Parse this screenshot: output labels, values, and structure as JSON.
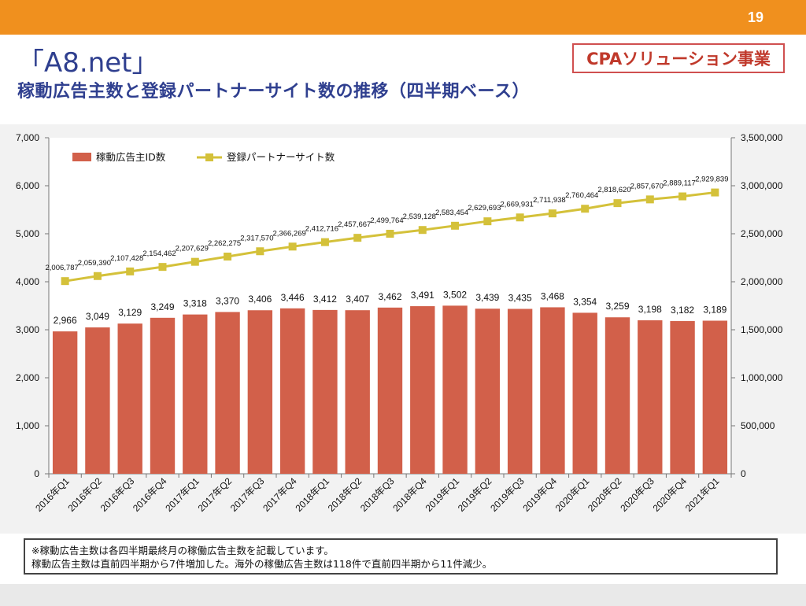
{
  "header": {
    "page_number": "19",
    "brand": "「A8.net」",
    "subtitle": "稼動広告主数と登録パートナーサイト数の推移（四半期ベース）",
    "tag": "CPAソリューション事業"
  },
  "colors": {
    "topbar": "#f0901e",
    "bar": "#d2604a",
    "line": "#d4c13a",
    "title": "#2f3f8f",
    "tag": "#c0392b"
  },
  "chart_data": {
    "type": "bar",
    "categories": [
      "2016年Q1",
      "2016年Q2",
      "2016年Q3",
      "2016年Q4",
      "2017年Q1",
      "2017年Q2",
      "2017年Q3",
      "2017年Q4",
      "2018年Q1",
      "2018年Q2",
      "2018年Q3",
      "2018年Q4",
      "2019年Q1",
      "2019年Q2",
      "2019年Q3",
      "2019年Q4",
      "2020年Q1",
      "2020年Q2",
      "2020年Q3",
      "2020年Q4",
      "2021年Q1"
    ],
    "series": [
      {
        "name": "稼動広告主ID数",
        "type": "bar",
        "axis": "left",
        "values": [
          2966,
          3049,
          3129,
          3249,
          3318,
          3370,
          3406,
          3446,
          3412,
          3407,
          3462,
          3491,
          3502,
          3439,
          3435,
          3468,
          3354,
          3259,
          3198,
          3182,
          3189
        ]
      },
      {
        "name": "登録パートナーサイト数",
        "type": "line",
        "axis": "right",
        "values": [
          2006787,
          2059390,
          2107428,
          2154462,
          2207629,
          2262275,
          2317570,
          2366269,
          2412716,
          2457667,
          2499764,
          2539128,
          2583454,
          2629693,
          2669931,
          2711938,
          2760464,
          2818620,
          2857670,
          2889117,
          2929839
        ]
      }
    ],
    "left_axis": {
      "ylim": [
        0,
        7000
      ],
      "ticks": [
        0,
        1000,
        2000,
        3000,
        4000,
        5000,
        6000,
        7000
      ],
      "tick_labels": [
        "0",
        "1,000",
        "2,000",
        "3,000",
        "4,000",
        "5,000",
        "6,000",
        "7,000"
      ]
    },
    "right_axis": {
      "ylim": [
        0,
        3500000
      ],
      "ticks": [
        0,
        500000,
        1000000,
        1500000,
        2000000,
        2500000,
        3000000,
        3500000
      ],
      "tick_labels": [
        "0",
        "500,000",
        "1,000,000",
        "1,500,000",
        "2,000,000",
        "2,500,000",
        "3,000,000",
        "3,500,000"
      ]
    },
    "bar_labels": [
      "2,966",
      "3,049",
      "3,129",
      "3,249",
      "3,318",
      "3,370",
      "3,406",
      "3,446",
      "3,412",
      "3,407",
      "3,462",
      "3,491",
      "3,502",
      "3,439",
      "3,435",
      "3,468",
      "3,354",
      "3,259",
      "3,198",
      "3,182",
      "3,189"
    ],
    "line_labels": [
      "2,006,787",
      "2,059,390",
      "2,107,428",
      "2,154,462",
      "2,207,629",
      "2,262,275",
      "2,317,570",
      "2,366,269",
      "2,412,716",
      "2,457,667",
      "2,499,764",
      "2,539,128",
      "2,583,454",
      "2,629,693",
      "2,669,931",
      "2,711,938",
      "2,760,464",
      "2,818,620",
      "2,857,670",
      "2,889,117",
      "2,929,839"
    ],
    "legend": [
      "稼動広告主ID数",
      "登録パートナーサイト数"
    ],
    "legend_position": "top-left",
    "grid": false
  },
  "notes": {
    "line1": "※稼動広告主数は各四半期最終月の稼働広告主数を記載しています。",
    "line2": "稼動広告主数は直前四半期から7件増加した。海外の稼働広告主数は118件で直前四半期から11件減少。"
  }
}
